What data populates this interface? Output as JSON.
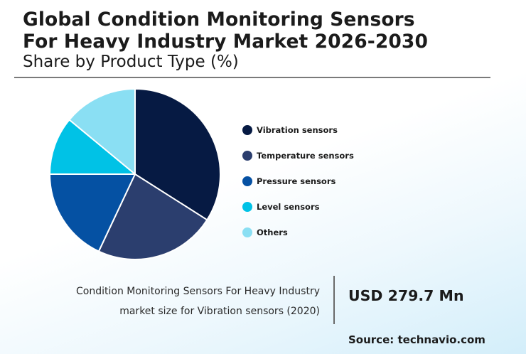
{
  "header": {
    "title_line1": "Global Condition Monitoring Sensors",
    "title_line2": "For Heavy Industry Market 2026-2030",
    "subtitle": "Share by Product Type (%)"
  },
  "chart_data": {
    "type": "pie",
    "title": "Global Condition Monitoring Sensors For Heavy Industry Market 2026-2030",
    "subtitle": "Share by Product Type (%)",
    "legend_position": "right",
    "categories": [
      "Vibration sensors",
      "Temperature sensors",
      "Pressure sensors",
      "Level sensors",
      "Others"
    ],
    "values": [
      34,
      23,
      18,
      11,
      14
    ],
    "colors": [
      "#061a43",
      "#2b3e6e",
      "#0551a3",
      "#00c2e6",
      "#8adff3"
    ]
  },
  "stat": {
    "caption_line1": "Condition Monitoring Sensors For Heavy Industry",
    "caption_line2": "market size for Vibration sensors (2020)",
    "value": "USD 279.7 Mn"
  },
  "source": "Source: technavio.com"
}
